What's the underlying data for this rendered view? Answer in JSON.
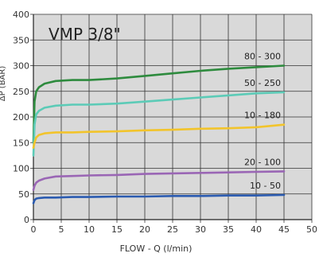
{
  "chart_data": {
    "type": "line",
    "title": "VMP 3/8\"",
    "xlabel": "FLOW - Q (l/min)",
    "ylabel": "ΔP (BAR)",
    "xlim": [
      0,
      50
    ],
    "ylim": [
      0,
      400
    ],
    "x_ticks": [
      0,
      5,
      10,
      15,
      20,
      25,
      30,
      35,
      40,
      45,
      50
    ],
    "y_ticks": [
      0,
      50,
      100,
      150,
      200,
      250,
      300,
      350,
      400
    ],
    "grid": true,
    "series": [
      {
        "name": "80 - 300",
        "color": "#2e8b3e",
        "x": [
          0,
          0.2,
          0.5,
          1,
          2,
          4,
          7,
          10,
          15,
          20,
          25,
          30,
          35,
          40,
          45
        ],
        "y": [
          150,
          230,
          250,
          258,
          265,
          270,
          272,
          272,
          275,
          280,
          285,
          290,
          294,
          297,
          300
        ]
      },
      {
        "name": "50 - 250",
        "color": "#5ccbb7",
        "x": [
          0,
          0.2,
          0.5,
          1,
          2,
          4,
          7,
          10,
          15,
          20,
          25,
          30,
          35,
          40,
          45
        ],
        "y": [
          125,
          185,
          205,
          212,
          218,
          222,
          224,
          224,
          226,
          230,
          234,
          238,
          242,
          246,
          248
        ]
      },
      {
        "name": "10 - 180",
        "color": "#f2c42b",
        "x": [
          0,
          0.2,
          0.5,
          1,
          2,
          4,
          7,
          10,
          15,
          20,
          25,
          30,
          35,
          40,
          45
        ],
        "y": [
          140,
          150,
          160,
          165,
          168,
          170,
          170,
          171,
          172,
          174,
          175,
          177,
          178,
          180,
          185
        ]
      },
      {
        "name": "20 - 100",
        "color": "#9a66b5",
        "x": [
          0,
          0.2,
          0.5,
          1,
          2,
          4,
          7,
          10,
          15,
          20,
          25,
          30,
          35,
          40,
          45
        ],
        "y": [
          58,
          66,
          72,
          76,
          80,
          84,
          85,
          86,
          87,
          89,
          90,
          91,
          92,
          93,
          94
        ]
      },
      {
        "name": "10 - 50",
        "color": "#2b5bb0",
        "x": [
          0,
          0.2,
          0.5,
          1,
          2,
          4,
          7,
          10,
          15,
          20,
          25,
          30,
          35,
          40,
          45
        ],
        "y": [
          32,
          38,
          41,
          42,
          43,
          43,
          44,
          44,
          45,
          45,
          46,
          46,
          47,
          47,
          48
        ]
      }
    ]
  }
}
